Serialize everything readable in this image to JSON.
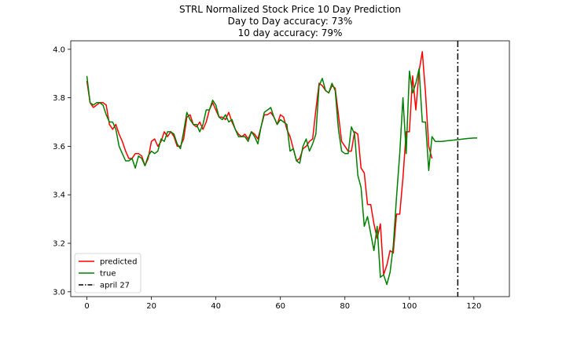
{
  "chart_data": {
    "type": "line",
    "title_lines": [
      "STRL Normalized Stock Price 10 Day Prediction",
      "Day to Day accuracy: 73%",
      "10 day accuracy: 79%"
    ],
    "xlim": [
      -5,
      131
    ],
    "ylim": [
      2.98,
      4.035
    ],
    "x_ticks": [
      0,
      20,
      40,
      60,
      80,
      100,
      120
    ],
    "y_ticks": [
      3.0,
      3.2,
      3.4,
      3.6,
      3.8,
      4.0
    ],
    "y_tick_labels": [
      "3.0",
      "3.2",
      "3.4",
      "3.6",
      "3.8",
      "4.0"
    ],
    "legend_position": "lower-left",
    "series": [
      {
        "name": "predicted",
        "color": "#ff0000",
        "points": [
          [
            0,
            3.87
          ],
          [
            1,
            3.78
          ],
          [
            2,
            3.76
          ],
          [
            3,
            3.77
          ],
          [
            4,
            3.78
          ],
          [
            5,
            3.78
          ],
          [
            6,
            3.77
          ],
          [
            7,
            3.69
          ],
          [
            8,
            3.67
          ],
          [
            9,
            3.69
          ],
          [
            10,
            3.65
          ],
          [
            11,
            3.62
          ],
          [
            12,
            3.58
          ],
          [
            13,
            3.55
          ],
          [
            14,
            3.55
          ],
          [
            15,
            3.57
          ],
          [
            16,
            3.57
          ],
          [
            17,
            3.56
          ],
          [
            18,
            3.52
          ],
          [
            19,
            3.55
          ],
          [
            20,
            3.62
          ],
          [
            21,
            3.63
          ],
          [
            22,
            3.6
          ],
          [
            23,
            3.62
          ],
          [
            24,
            3.66
          ],
          [
            25,
            3.64
          ],
          [
            26,
            3.66
          ],
          [
            27,
            3.64
          ],
          [
            28,
            3.6
          ],
          [
            29,
            3.6
          ],
          [
            30,
            3.63
          ],
          [
            31,
            3.72
          ],
          [
            32,
            3.73
          ],
          [
            33,
            3.69
          ],
          [
            34,
            3.68
          ],
          [
            35,
            3.7
          ],
          [
            36,
            3.67
          ],
          [
            37,
            3.7
          ],
          [
            38,
            3.75
          ],
          [
            39,
            3.78
          ],
          [
            40,
            3.75
          ],
          [
            41,
            3.72
          ],
          [
            42,
            3.72
          ],
          [
            43,
            3.71
          ],
          [
            44,
            3.74
          ],
          [
            45,
            3.7
          ],
          [
            46,
            3.67
          ],
          [
            47,
            3.65
          ],
          [
            48,
            3.64
          ],
          [
            49,
            3.65
          ],
          [
            50,
            3.63
          ],
          [
            51,
            3.66
          ],
          [
            52,
            3.65
          ],
          [
            53,
            3.63
          ],
          [
            54,
            3.68
          ],
          [
            55,
            3.73
          ],
          [
            56,
            3.73
          ],
          [
            57,
            3.74
          ],
          [
            58,
            3.72
          ],
          [
            59,
            3.69
          ],
          [
            60,
            3.73
          ],
          [
            61,
            3.72
          ],
          [
            62,
            3.67
          ],
          [
            63,
            3.64
          ],
          [
            64,
            3.59
          ],
          [
            65,
            3.54
          ],
          [
            66,
            3.55
          ],
          [
            67,
            3.59
          ],
          [
            68,
            3.6
          ],
          [
            69,
            3.62
          ],
          [
            70,
            3.63
          ],
          [
            71,
            3.75
          ],
          [
            72,
            3.86
          ],
          [
            73,
            3.85
          ],
          [
            74,
            3.83
          ],
          [
            75,
            3.82
          ],
          [
            76,
            3.85
          ],
          [
            77,
            3.84
          ],
          [
            78,
            3.73
          ],
          [
            79,
            3.62
          ],
          [
            80,
            3.6
          ],
          [
            81,
            3.58
          ],
          [
            82,
            3.58
          ],
          [
            83,
            3.66
          ],
          [
            84,
            3.65
          ],
          [
            85,
            3.51
          ],
          [
            86,
            3.49
          ],
          [
            87,
            3.36
          ],
          [
            88,
            3.36
          ],
          [
            89,
            3.28
          ],
          [
            90,
            3.22
          ],
          [
            91,
            3.28
          ],
          [
            92,
            3.07
          ],
          [
            93,
            3.11
          ],
          [
            94,
            3.17
          ],
          [
            95,
            3.16
          ],
          [
            96,
            3.32
          ],
          [
            97,
            3.32
          ],
          [
            98,
            3.47
          ],
          [
            99,
            3.66
          ],
          [
            100,
            3.66
          ],
          [
            101,
            3.89
          ],
          [
            102,
            3.75
          ],
          [
            103,
            3.91
          ],
          [
            104,
            3.99
          ],
          [
            105,
            3.82
          ],
          [
            106,
            3.6
          ],
          [
            107,
            3.55
          ]
        ]
      },
      {
        "name": "true",
        "color": "#008000",
        "points": [
          [
            0,
            3.89
          ],
          [
            1,
            3.78
          ],
          [
            2,
            3.77
          ],
          [
            3,
            3.78
          ],
          [
            4,
            3.78
          ],
          [
            5,
            3.77
          ],
          [
            6,
            3.73
          ],
          [
            7,
            3.7
          ],
          [
            8,
            3.7
          ],
          [
            9,
            3.67
          ],
          [
            10,
            3.6
          ],
          [
            11,
            3.57
          ],
          [
            12,
            3.54
          ],
          [
            13,
            3.54
          ],
          [
            14,
            3.55
          ],
          [
            15,
            3.51
          ],
          [
            16,
            3.56
          ],
          [
            17,
            3.55
          ],
          [
            18,
            3.52
          ],
          [
            19,
            3.56
          ],
          [
            20,
            3.58
          ],
          [
            21,
            3.57
          ],
          [
            22,
            3.58
          ],
          [
            23,
            3.63
          ],
          [
            24,
            3.62
          ],
          [
            25,
            3.66
          ],
          [
            26,
            3.66
          ],
          [
            27,
            3.65
          ],
          [
            28,
            3.61
          ],
          [
            29,
            3.59
          ],
          [
            30,
            3.66
          ],
          [
            31,
            3.74
          ],
          [
            32,
            3.71
          ],
          [
            33,
            3.69
          ],
          [
            34,
            3.69
          ],
          [
            35,
            3.66
          ],
          [
            36,
            3.69
          ],
          [
            37,
            3.75
          ],
          [
            38,
            3.75
          ],
          [
            39,
            3.79
          ],
          [
            40,
            3.77
          ],
          [
            41,
            3.72
          ],
          [
            42,
            3.71
          ],
          [
            43,
            3.73
          ],
          [
            44,
            3.7
          ],
          [
            45,
            3.71
          ],
          [
            46,
            3.67
          ],
          [
            47,
            3.64
          ],
          [
            48,
            3.64
          ],
          [
            49,
            3.64
          ],
          [
            50,
            3.62
          ],
          [
            51,
            3.66
          ],
          [
            52,
            3.64
          ],
          [
            53,
            3.61
          ],
          [
            54,
            3.68
          ],
          [
            55,
            3.74
          ],
          [
            56,
            3.75
          ],
          [
            57,
            3.76
          ],
          [
            58,
            3.72
          ],
          [
            59,
            3.69
          ],
          [
            60,
            3.71
          ],
          [
            61,
            3.7
          ],
          [
            62,
            3.69
          ],
          [
            63,
            3.58
          ],
          [
            64,
            3.59
          ],
          [
            65,
            3.54
          ],
          [
            66,
            3.53
          ],
          [
            67,
            3.6
          ],
          [
            68,
            3.63
          ],
          [
            69,
            3.58
          ],
          [
            70,
            3.61
          ],
          [
            71,
            3.65
          ],
          [
            72,
            3.85
          ],
          [
            73,
            3.88
          ],
          [
            74,
            3.83
          ],
          [
            75,
            3.82
          ],
          [
            76,
            3.86
          ],
          [
            77,
            3.83
          ],
          [
            78,
            3.67
          ],
          [
            79,
            3.58
          ],
          [
            80,
            3.57
          ],
          [
            81,
            3.57
          ],
          [
            82,
            3.68
          ],
          [
            83,
            3.65
          ],
          [
            84,
            3.48
          ],
          [
            85,
            3.43
          ],
          [
            86,
            3.27
          ],
          [
            87,
            3.31
          ],
          [
            88,
            3.24
          ],
          [
            89,
            3.17
          ],
          [
            90,
            3.27
          ],
          [
            91,
            3.06
          ],
          [
            92,
            3.07
          ],
          [
            93,
            3.03
          ],
          [
            94,
            3.08
          ],
          [
            95,
            3.19
          ],
          [
            96,
            3.39
          ],
          [
            97,
            3.57
          ],
          [
            98,
            3.8
          ],
          [
            99,
            3.57
          ],
          [
            100,
            3.91
          ],
          [
            101,
            3.82
          ],
          [
            102,
            3.86
          ],
          [
            103,
            3.92
          ],
          [
            104,
            3.7
          ],
          [
            105,
            3.7
          ],
          [
            106,
            3.5
          ],
          [
            107,
            3.64
          ],
          [
            108,
            3.62
          ],
          [
            109,
            3.62
          ],
          [
            110,
            3.62
          ],
          [
            112,
            3.623
          ],
          [
            114,
            3.626
          ],
          [
            116,
            3.629
          ],
          [
            118,
            3.632
          ],
          [
            120,
            3.634
          ],
          [
            121,
            3.634
          ]
        ]
      }
    ],
    "vline": {
      "name": "april 27",
      "x": 115,
      "color": "#000000",
      "style": "dashdot"
    }
  }
}
